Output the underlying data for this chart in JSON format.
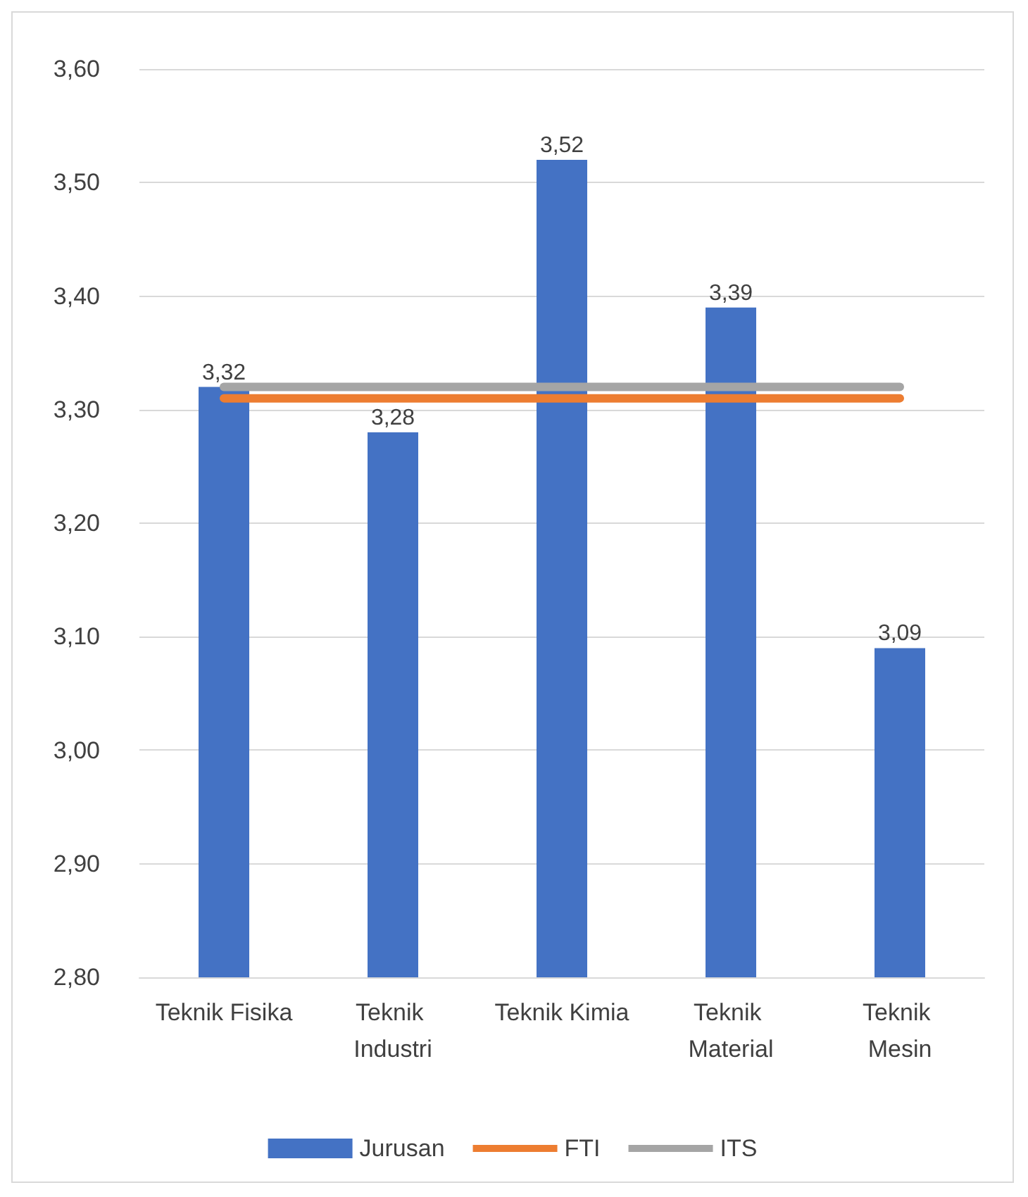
{
  "chart_data": {
    "type": "bar",
    "categories": [
      "Teknik Fisika",
      "Teknik Industri",
      "Teknik Kimia",
      "Teknik Material",
      "Teknik Mesin"
    ],
    "series": [
      {
        "name": "Jurusan",
        "color": "#4472c4",
        "values": [
          3.32,
          3.28,
          3.52,
          3.39,
          3.09
        ],
        "value_labels": [
          "3,32",
          "3,28",
          "3,52",
          "3,39",
          "3,09"
        ]
      },
      {
        "name": "FTI",
        "type": "line",
        "color": "#ed7d31",
        "values": [
          3.31,
          3.31,
          3.31,
          3.31,
          3.31
        ]
      },
      {
        "name": "ITS",
        "type": "line",
        "color": "#a5a5a5",
        "values": [
          3.32,
          3.32,
          3.32,
          3.32,
          3.32
        ]
      }
    ],
    "ylim": [
      2.8,
      3.6
    ],
    "yticks": [
      {
        "value": 2.8,
        "label": "2,80"
      },
      {
        "value": 2.9,
        "label": "2,90"
      },
      {
        "value": 3.0,
        "label": "3,00"
      },
      {
        "value": 3.1,
        "label": "3,10"
      },
      {
        "value": 3.2,
        "label": "3,20"
      },
      {
        "value": 3.3,
        "label": "3,30"
      },
      {
        "value": 3.4,
        "label": "3,40"
      },
      {
        "value": 3.5,
        "label": "3,50"
      },
      {
        "value": 3.6,
        "label": "3,60"
      }
    ],
    "grid": "y",
    "legend": "bottom",
    "marker": "none"
  }
}
